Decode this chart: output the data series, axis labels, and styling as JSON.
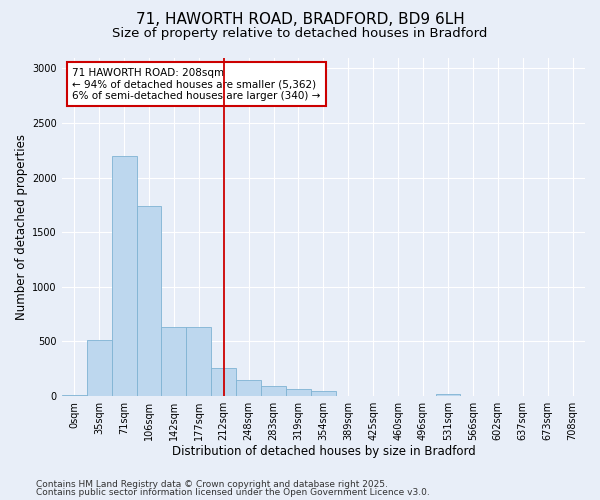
{
  "title_line1": "71, HAWORTH ROAD, BRADFORD, BD9 6LH",
  "title_line2": "Size of property relative to detached houses in Bradford",
  "xlabel": "Distribution of detached houses by size in Bradford",
  "ylabel": "Number of detached properties",
  "footer_line1": "Contains HM Land Registry data © Crown copyright and database right 2025.",
  "footer_line2": "Contains public sector information licensed under the Open Government Licence v3.0.",
  "categories": [
    "0sqm",
    "35sqm",
    "71sqm",
    "106sqm",
    "142sqm",
    "177sqm",
    "212sqm",
    "248sqm",
    "283sqm",
    "319sqm",
    "354sqm",
    "389sqm",
    "425sqm",
    "460sqm",
    "496sqm",
    "531sqm",
    "566sqm",
    "602sqm",
    "637sqm",
    "673sqm",
    "708sqm"
  ],
  "values": [
    10,
    510,
    2200,
    1740,
    630,
    630,
    260,
    145,
    90,
    65,
    45,
    0,
    0,
    0,
    0,
    20,
    0,
    0,
    0,
    0,
    0
  ],
  "bar_color": "#bdd7ee",
  "bar_edge_color": "#7fb3d3",
  "vline_x": 6.0,
  "vline_color": "#cc0000",
  "annotation_box_text": "71 HAWORTH ROAD: 208sqm\n← 94% of detached houses are smaller (5,362)\n6% of semi-detached houses are larger (340) →",
  "annotation_box_color": "white",
  "annotation_box_edge_color": "#cc0000",
  "ylim": [
    0,
    3100
  ],
  "yticks": [
    0,
    500,
    1000,
    1500,
    2000,
    2500,
    3000
  ],
  "background_color": "#e8eef8",
  "plot_background_color": "#e8eef8",
  "grid_color": "white",
  "title_fontsize": 11,
  "subtitle_fontsize": 9.5,
  "tick_fontsize": 7,
  "label_fontsize": 8.5,
  "footer_fontsize": 6.5,
  "annotation_fontsize": 7.5
}
